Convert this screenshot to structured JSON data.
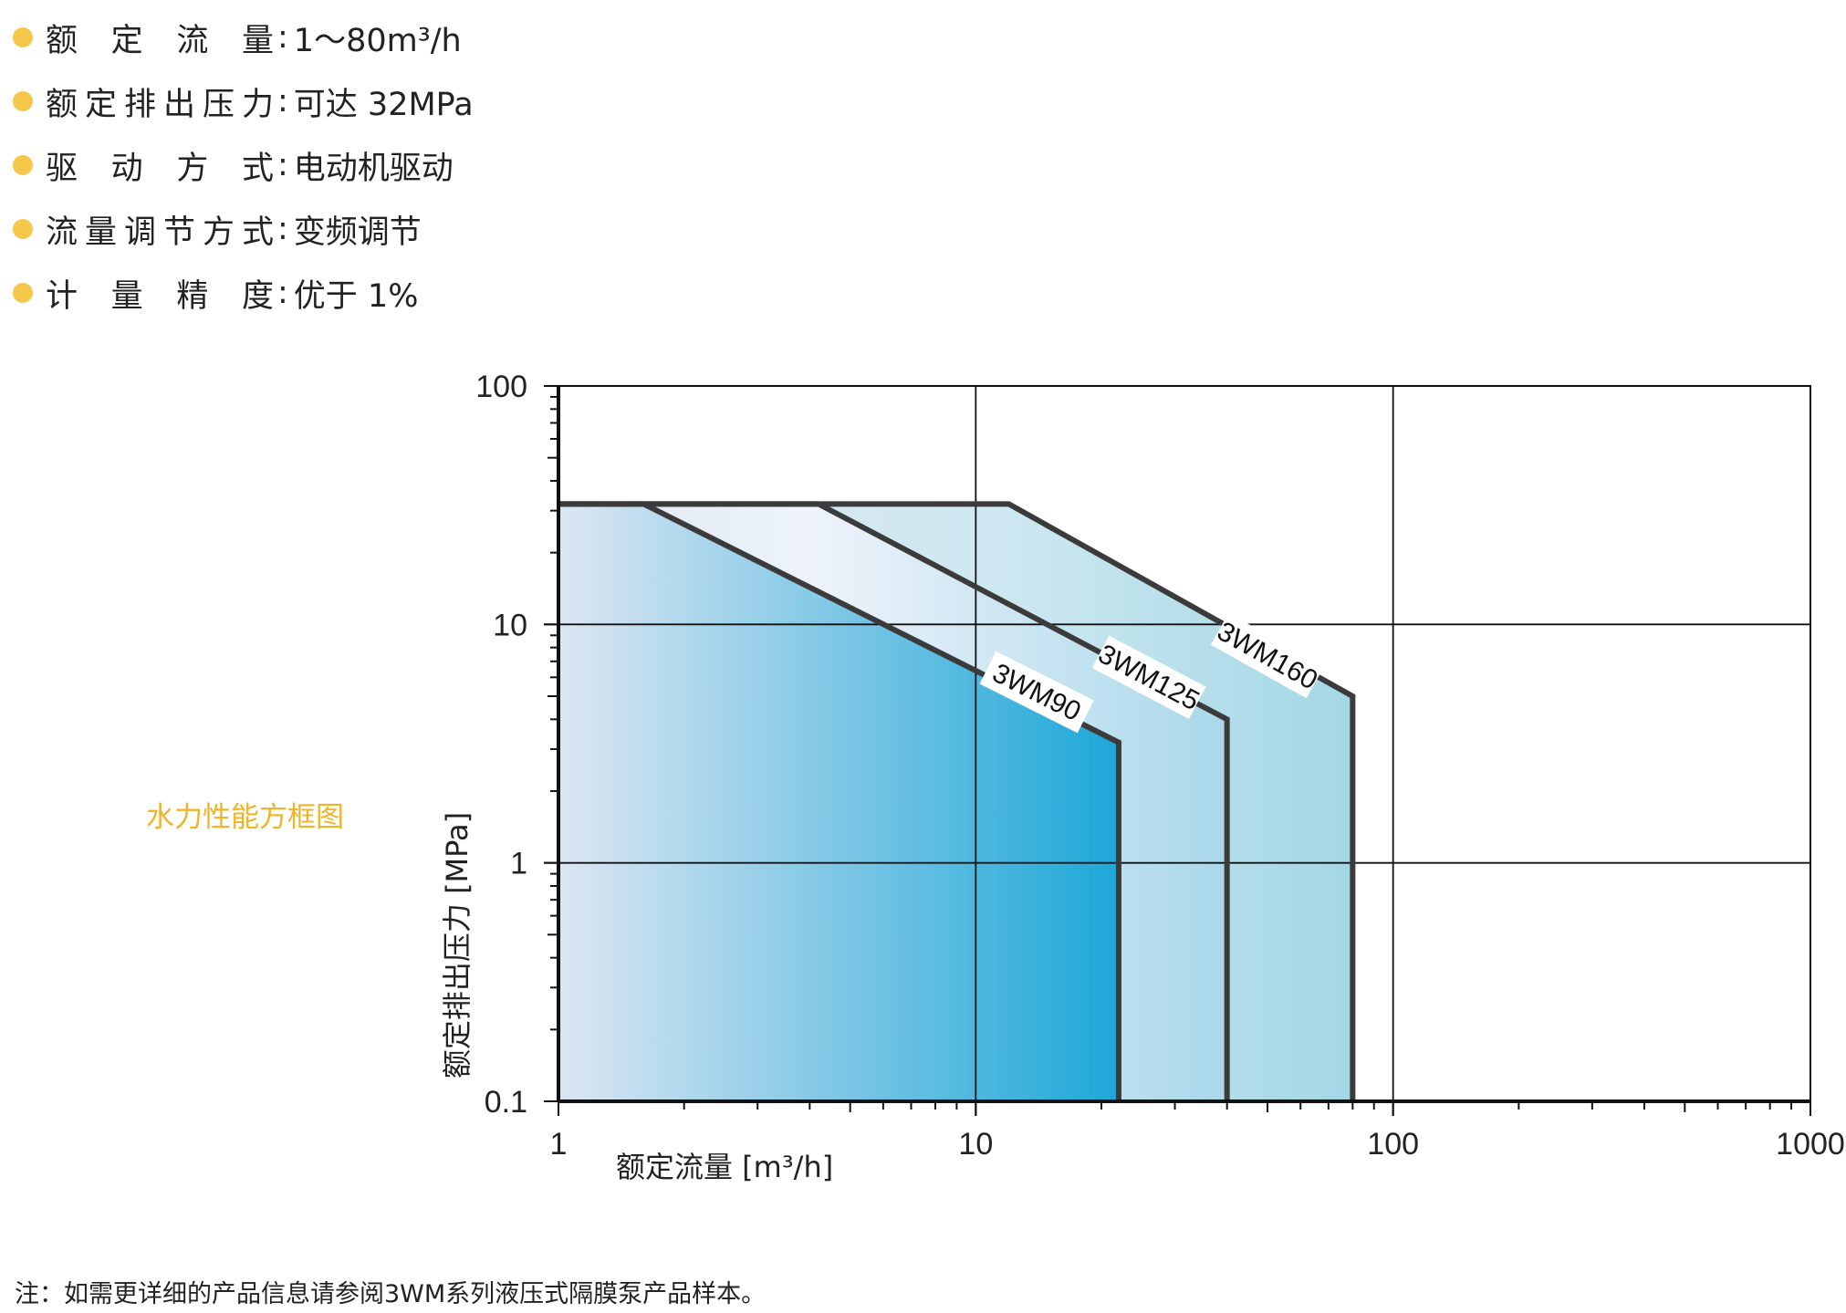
{
  "specs": [
    {
      "label": "额定流量",
      "value": "1～80m³/h"
    },
    {
      "label": "额定排出压力",
      "value": "可达 32MPa"
    },
    {
      "label": "驱动方式",
      "value": "电动机驱动"
    },
    {
      "label": "流量调节方式",
      "value": "变频调节"
    },
    {
      "label": "计量精度",
      "value": "优于 1%"
    }
  ],
  "colors": {
    "bullet": "#f4c84a",
    "caption": "#f0b429",
    "area_light": "#dde6f2",
    "area_dark": "#1da8d8",
    "outline": "#3b3b3b"
  },
  "caption": "水力性能方框图",
  "footnote": "注：如需更详细的产品信息请参阅3WM系列液压式隔膜泵产品样本。",
  "chart_data": {
    "type": "area",
    "xlabel": "额定流量 [m³/h]",
    "ylabel": "额定排出压力 [MPa]",
    "x_scale": "log",
    "y_scale": "log",
    "xlim": [
      1,
      1000
    ],
    "ylim": [
      0.1,
      100
    ],
    "x_ticks": [
      "1",
      "10",
      "100",
      "1000"
    ],
    "y_ticks": [
      "0.1",
      "1",
      "10",
      "100"
    ],
    "grid": true,
    "series": [
      {
        "name": "3WM160",
        "points": [
          [
            1,
            32
          ],
          [
            12,
            32
          ],
          [
            80,
            5
          ],
          [
            80,
            0.1
          ]
        ]
      },
      {
        "name": "3WM125",
        "points": [
          [
            1,
            32
          ],
          [
            4.2,
            32
          ],
          [
            40,
            4
          ],
          [
            40,
            0.1
          ]
        ]
      },
      {
        "name": "3WM90",
        "points": [
          [
            1,
            32
          ],
          [
            1.6,
            32
          ],
          [
            22,
            3.2
          ],
          [
            22,
            0.1
          ]
        ]
      }
    ]
  }
}
